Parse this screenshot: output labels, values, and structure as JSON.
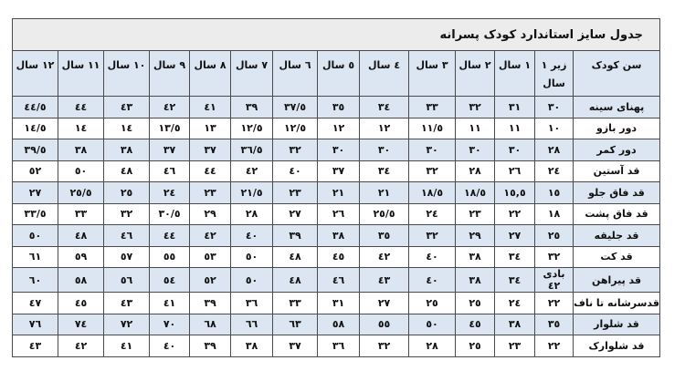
{
  "title": "جدول سایز استاندارد کودک پسرانه",
  "headers": [
    "سن کودک",
    "زیر ١ سال",
    "١ سال",
    "٢ سال",
    "٣ سال",
    "٤ سال",
    "٥ سال",
    "٦ سال",
    "٧ سال",
    "٨ سال",
    "٩ سال",
    "١٠ سال",
    "١١ سال",
    "١٢ سال"
  ],
  "rows": [
    {
      "label": "پهنای سینه",
      "values": [
        "٣٠",
        "٣١",
        "٣٢",
        "٣٣",
        "٣٤",
        "٣٥",
        "٣٧/٥",
        "٣٩",
        "٤١",
        "٤٢",
        "٤٣",
        "٤٤",
        "٤٤/٥"
      ]
    },
    {
      "label": "دور بازو",
      "values": [
        "١٠",
        "١١",
        "١١",
        "١١/٥",
        "١٢",
        "١٢",
        "١٢/٥",
        "١٢/٥",
        "١٣",
        "١٣/٥",
        "١٤",
        "١٤",
        "١٤/٥"
      ]
    },
    {
      "label": "دور کمر",
      "values": [
        "٢٨",
        "٣٠",
        "٣٠",
        "٣٠",
        "٣٠",
        "٣٠",
        "٣٢",
        "٣٦/٥",
        "٣٧",
        "٣٧",
        "٣٨",
        "٣٨",
        "٣٩/٥"
      ]
    },
    {
      "label": "قد آستین",
      "values": [
        "٢٤",
        "٢٦",
        "٢٨",
        "٣٢",
        "٣٤",
        "٣٧",
        "٤٠",
        "٤٢",
        "٤٤",
        "٤٦",
        "٤٨",
        "٥٠",
        "٥٢"
      ]
    },
    {
      "label": "قد فاق جلو",
      "values": [
        "١٥",
        "١٥,٥",
        "١٨/٥",
        "١٨/٥",
        "٢١",
        "٢١",
        "٢٣",
        "٢١/٥",
        "٢٣",
        "٢٤",
        "٢٥",
        "٢٥/٥",
        "٢٧"
      ]
    },
    {
      "label": "قد فاق پشت",
      "values": [
        "١٨",
        "٢٢",
        "٢٣",
        "٢٤",
        "٢٥/٥",
        "٢٦",
        "٢٧",
        "٢٨",
        "٢٩",
        "٣٠/٥",
        "٣٢",
        "٣٣",
        "٣٣/٥"
      ]
    },
    {
      "label": "قد جلیقه",
      "values": [
        "٢٥",
        "٢٧",
        "٢٩",
        "٣٢",
        "٣٥",
        "٣٨",
        "٣٩",
        "٤٠",
        "٤٢",
        "٤٤",
        "٤٦",
        "٤٨",
        "٥٠"
      ]
    },
    {
      "label": "قد کت",
      "values": [
        "٣٢",
        "٣٤",
        "٣٨",
        "٤٠",
        "٤٢",
        "٤٥",
        "٤٨",
        "٥٠",
        "٥٣",
        "٥٥",
        "٥٧",
        "٥٩",
        "٦١"
      ]
    },
    {
      "label": "قد پیراهن",
      "values": [
        "بادی ٤٢",
        "٣٤",
        "٣٨",
        "٤٠",
        "٤٣",
        "٤٦",
        "٤٨",
        "٥٠",
        "٥٢",
        "٥٤",
        "٥٦",
        "٥٨",
        "٦٠"
      ]
    },
    {
      "label": "قدسرشانه تا ناف",
      "values": [
        "٢٢",
        "٢٤",
        "٢٥",
        "٢٥",
        "٢٧",
        "٣١",
        "٣٣",
        "٣٦",
        "٣٩",
        "٤١",
        "٤٣",
        "٤٥",
        "٤٧"
      ]
    },
    {
      "label": "قد شلوار",
      "values": [
        "٣٥",
        "٣٨",
        "٤٥",
        "٥٠",
        "٥٥",
        "٥٨",
        "٦٣",
        "٦٦",
        "٦٨",
        "٧٠",
        "٧٢",
        "٧٤",
        "٧٦"
      ]
    },
    {
      "label": "قد شلوارک",
      "values": [
        "٢٢",
        "٢٣",
        "٢٥",
        "٢٨",
        "٣٢",
        "٣٦",
        "٣٧",
        "٣٨",
        "٣٩",
        "٤٠",
        "٤١",
        "٤٢",
        "٤٣"
      ]
    }
  ],
  "colors": {
    "header_bg": "#dce6f2",
    "title_bg": "#ececec",
    "border": "#4a4a4a"
  }
}
